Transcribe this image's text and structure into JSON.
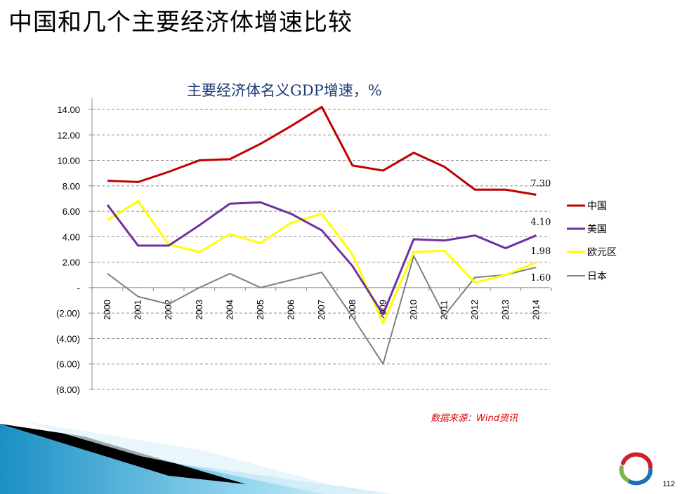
{
  "slide": {
    "title": "中国和几个主要经济体增速比较",
    "source": "数据来源：Wind资讯",
    "page_number": "112"
  },
  "chart_data": {
    "type": "line",
    "title": "主要经济体名义GDP增速，%",
    "xlabel": "",
    "ylabel": "",
    "ylim": [
      -8,
      14
    ],
    "yticks": [
      14,
      12,
      10,
      8,
      6,
      4,
      2,
      0,
      -2,
      -4,
      -6,
      -8
    ],
    "ytick_labels": [
      "14.00",
      "12.00",
      "10.00",
      "8.00",
      "6.00",
      "4.00",
      "2.00",
      "-",
      "(2.00)",
      "(4.00)",
      "(6.00)",
      "(8.00)"
    ],
    "grid": true,
    "legend_position": "right",
    "categories": [
      "2000",
      "2001",
      "2002",
      "2003",
      "2004",
      "2005",
      "2006",
      "2007",
      "2008",
      "2009",
      "2010",
      "2011",
      "2012",
      "2013",
      "2014"
    ],
    "series": [
      {
        "name": "中国",
        "color": "#c00000",
        "values": [
          8.4,
          8.3,
          9.1,
          10.0,
          10.1,
          11.3,
          12.7,
          14.2,
          9.6,
          9.2,
          10.6,
          9.5,
          7.7,
          7.7,
          7.3
        ],
        "end_label": "7.30"
      },
      {
        "name": "美国",
        "color": "#7030a0",
        "values": [
          6.5,
          3.3,
          3.3,
          4.9,
          6.6,
          6.7,
          5.8,
          4.5,
          1.7,
          -2.1,
          3.8,
          3.7,
          4.1,
          3.1,
          4.1
        ],
        "end_label": "4.10"
      },
      {
        "name": "欧元区",
        "color": "#ffff00",
        "values": [
          5.3,
          6.8,
          3.4,
          2.8,
          4.2,
          3.5,
          5.1,
          5.8,
          2.6,
          -2.8,
          2.8,
          2.9,
          0.4,
          1.0,
          1.98
        ],
        "end_label": "1.98"
      },
      {
        "name": "日本",
        "color": "#808080",
        "values": [
          1.1,
          -0.7,
          -1.3,
          0.0,
          1.1,
          0.0,
          0.6,
          1.2,
          -2.3,
          -6.0,
          2.5,
          -2.2,
          0.8,
          1.0,
          1.6
        ],
        "end_label": "1.60"
      }
    ]
  }
}
